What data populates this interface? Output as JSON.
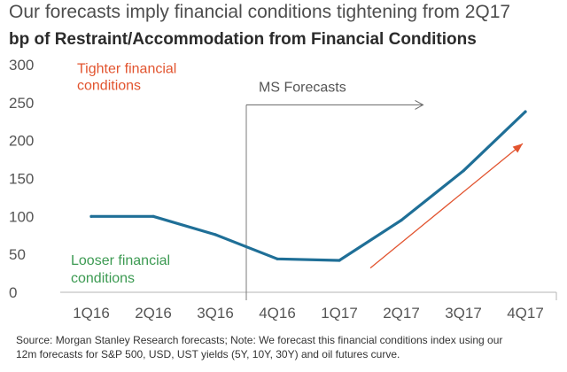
{
  "header": {
    "title": "Our forecasts imply financial conditions tightening from 2Q17",
    "subtitle": "bp of Restraint/Accommodation from Financial Conditions"
  },
  "annotations": {
    "tighter_line1": "Tighter financial",
    "tighter_line2": "conditions",
    "looser_line1": "Looser financial",
    "looser_line2": "conditions",
    "forecast_label": "MS Forecasts"
  },
  "footer": {
    "source_line1": "Source: Morgan Stanley Research forecasts; Note: We forecast this financial conditions index using our",
    "source_line2": "12m forecasts for S&P 500, USD, UST yields (5Y, 10Y, 30Y) and oil futures curve."
  },
  "colors": {
    "series": "#1f6f97",
    "tighter": "#e2542f",
    "looser": "#3c9a52",
    "forecast": "#555555"
  },
  "chart_data": {
    "type": "line",
    "title": "",
    "xlabel": "",
    "ylabel": "",
    "categories": [
      "1Q16",
      "2Q16",
      "3Q16",
      "4Q16",
      "1Q17",
      "2Q17",
      "3Q17",
      "4Q17"
    ],
    "series": [
      {
        "values": [
          100,
          100,
          76,
          44,
          42,
          95,
          160,
          238
        ]
      }
    ],
    "ylim": [
      0,
      300
    ],
    "yticks": [
      0,
      50,
      100,
      150,
      200,
      250,
      300
    ],
    "grid": false,
    "forecast_start": "4Q16",
    "trend_arrow": {
      "from": {
        "x": 5,
        "y": 32
      },
      "to": {
        "x": 8,
        "y": 196
      }
    }
  }
}
